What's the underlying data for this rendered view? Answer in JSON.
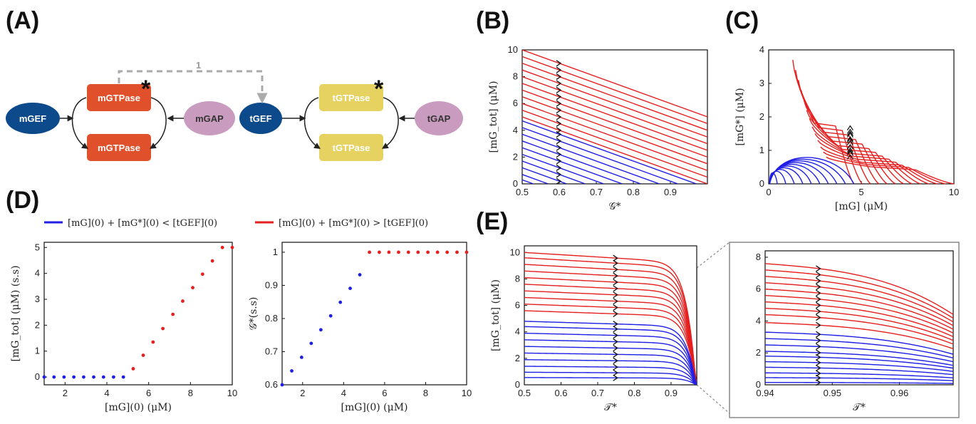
{
  "panels": {
    "A": "(A)",
    "B": "(B)",
    "C": "(C)",
    "D": "(D)",
    "E": "(E)"
  },
  "diagram": {
    "mGEF": "mGEF",
    "mGTPase_active": "mGTPase",
    "mGTPase_inactive": "mGTPase",
    "mGAP": "mGAP",
    "tGEF": "tGEF",
    "tGTPase_active": "tGTPase",
    "tGTPase_inactive": "tGTPase",
    "tGAP": "tGAP",
    "link_label": "1",
    "active_marker": "*",
    "colors": {
      "gef": "#0d4a8c",
      "mgtpase": "#e0502b",
      "tgtpase": "#e6d260",
      "gap": "#c99bbf",
      "link": "#aaaaaa"
    }
  },
  "legend": {
    "blue": "[mG](0) + [mG*](0) < [tGEF](0)",
    "red": "[mG](0) + [mG*](0) > [tGEF](0)"
  },
  "chart_data": [
    {
      "id": "B",
      "type": "line",
      "xlabel": "𝒢*",
      "ylabel": "[mG_tot] (μM)",
      "xlim": [
        0.5,
        1.0
      ],
      "ylim": [
        0,
        10
      ],
      "xticks": [
        "0.5",
        "0.6",
        "0.7",
        "0.8",
        "0.9"
      ],
      "yticks": [
        "0",
        "2",
        "4",
        "6",
        "8",
        "10"
      ],
      "series": [
        {
          "color": "red",
          "x": [
            0.5,
            1.0
          ],
          "start_values": [
            10.0,
            9.5,
            9.0,
            8.5,
            8.0,
            7.5,
            7.0,
            6.5,
            6.0,
            5.5,
            5.0
          ],
          "slope_per_unit_x": -10
        },
        {
          "color": "blue",
          "x": [
            0.5,
            1.0
          ],
          "start_values": [
            4.7,
            4.2,
            3.7,
            3.2,
            2.7,
            2.2,
            1.7,
            1.2,
            0.7,
            0.3
          ],
          "slope_per_unit_x": -10
        }
      ],
      "arrow_x": 0.6
    },
    {
      "id": "C",
      "type": "line",
      "xlabel": "[mG] (μM)",
      "ylabel": "[mG*] (μM)",
      "xlim": [
        0,
        10
      ],
      "ylim": [
        0,
        4
      ],
      "xticks": [
        "0",
        "5",
        "10"
      ],
      "yticks": [
        "0",
        "1",
        "2",
        "3",
        "4"
      ],
      "series": [
        {
          "color": "red",
          "start_y": [
            3.7,
            3.4,
            3.1,
            2.8,
            2.5,
            2.2,
            1.95,
            1.7,
            1.5,
            1.3,
            1.1,
            0.95,
            0.8
          ],
          "start_x": 1.3,
          "end_x_range": [
            4.5,
            10
          ]
        },
        {
          "color": "blue",
          "loop_count": 10,
          "max_x": 4.6,
          "max_y": 1.0
        }
      ]
    },
    {
      "id": "D1",
      "type": "scatter",
      "xlabel": "[mG](0) (μM)",
      "ylabel": "[mG_tot] (μM) (s.s)",
      "xlim": [
        1,
        10
      ],
      "ylim": [
        -0.3,
        5.2
      ],
      "xticks": [
        "2",
        "4",
        "6",
        "8",
        "10"
      ],
      "yticks": [
        "0",
        "1",
        "2",
        "3",
        "4",
        "5"
      ],
      "series": [
        {
          "name": "blue",
          "x": [
            1.0,
            1.47,
            1.95,
            2.42,
            2.89,
            3.37,
            3.84,
            4.32,
            4.79
          ],
          "y": [
            0,
            0,
            0,
            0,
            0,
            0,
            0,
            0,
            0
          ]
        },
        {
          "name": "red",
          "x": [
            5.26,
            5.74,
            6.21,
            6.68,
            7.16,
            7.63,
            8.11,
            8.58,
            9.05,
            9.53,
            10.0
          ],
          "y": [
            0.32,
            0.84,
            1.35,
            1.87,
            2.42,
            2.93,
            3.45,
            3.97,
            4.48,
            5.0,
            5.0
          ]
        }
      ]
    },
    {
      "id": "D2",
      "type": "scatter",
      "xlabel": "[mG](0) (μM)",
      "ylabel": "𝒢*(s.s)",
      "xlim": [
        1,
        10
      ],
      "ylim": [
        0.6,
        1.03
      ],
      "xticks": [
        "2",
        "4",
        "6",
        "8",
        "10"
      ],
      "yticks": [
        "0.6",
        "0.7",
        "0.8",
        "0.9",
        "1"
      ],
      "series": [
        {
          "name": "blue",
          "x": [
            1.0,
            1.47,
            1.95,
            2.42,
            2.89,
            3.37,
            3.84,
            4.32,
            4.79
          ],
          "y": [
            0.6,
            0.642,
            0.683,
            0.725,
            0.766,
            0.808,
            0.849,
            0.891,
            0.932
          ]
        },
        {
          "name": "red",
          "x": [
            5.26,
            5.74,
            6.21,
            6.68,
            7.16,
            7.63,
            8.11,
            8.58,
            9.05,
            9.53,
            10.0
          ],
          "y": [
            1,
            1,
            1,
            1,
            1,
            1,
            1,
            1,
            1,
            1,
            1
          ]
        }
      ]
    },
    {
      "id": "E1",
      "type": "line",
      "xlabel": "𝒯*",
      "ylabel": "[mG_tot] (μM)",
      "xlim": [
        0.5,
        0.97
      ],
      "ylim": [
        0,
        10.5
      ],
      "xticks": [
        "0.5",
        "0.6",
        "0.7",
        "0.8",
        "0.9"
      ],
      "yticks": [
        "0",
        "2",
        "4",
        "6",
        "8",
        "10"
      ],
      "series": [
        {
          "color": "red",
          "start_values": [
            10.0,
            9.6,
            9.1,
            8.6,
            8.1,
            7.6,
            7.1,
            6.6,
            6.1,
            5.6
          ]
        },
        {
          "color": "blue",
          "start_values": [
            4.8,
            4.4,
            3.9,
            3.4,
            2.9,
            2.4,
            1.9,
            1.4,
            0.95,
            0.55
          ]
        }
      ],
      "arrow_x": 0.75
    },
    {
      "id": "E2",
      "type": "line",
      "xlabel": "𝒯*",
      "ylabel": "",
      "xlim": [
        0.94,
        0.968
      ],
      "ylim": [
        0,
        8.4
      ],
      "xticks": [
        "0.94",
        "0.95",
        "0.96"
      ],
      "yticks": [
        "0",
        "2",
        "4",
        "6",
        "8"
      ],
      "series": [
        {
          "color": "red",
          "start_values": [
            7.6,
            7.2,
            6.8,
            6.4,
            6.0,
            5.6,
            5.2,
            4.8,
            4.4,
            3.9
          ]
        },
        {
          "color": "blue",
          "start_values": [
            3.3,
            2.9,
            2.5,
            2.1,
            1.8,
            1.45,
            1.1,
            0.75,
            0.45,
            0.15
          ]
        }
      ],
      "arrow_x": 0.948
    }
  ]
}
